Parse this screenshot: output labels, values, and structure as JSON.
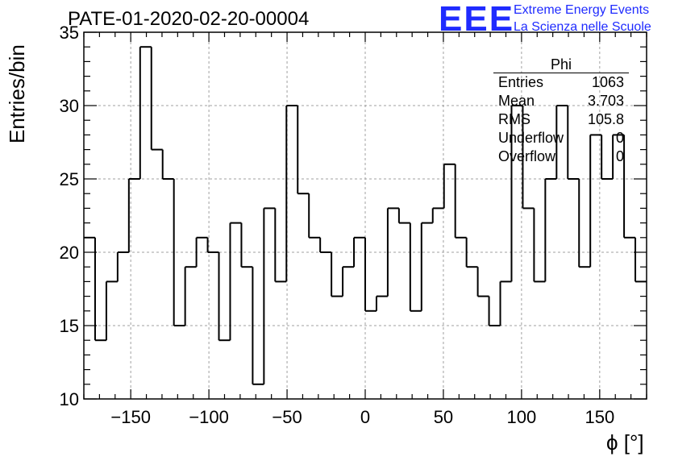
{
  "header": {
    "title": "PATE-01-2020-02-20-00004",
    "logo_text": "EEE",
    "logo_line1": "Extreme Energy Events",
    "logo_line2": "La Scienza nelle Scuole"
  },
  "stats_box": {
    "title": "Phi",
    "rows": [
      {
        "label": "Entries",
        "value": "1063"
      },
      {
        "label": "Mean",
        "value": "3.703"
      },
      {
        "label": "RMS",
        "value": "105.8"
      },
      {
        "label": "Underflow",
        "value": "0"
      },
      {
        "label": "Overflow",
        "value": "0"
      }
    ]
  },
  "chart_data": {
    "type": "bar",
    "histogram": true,
    "title": "PATE-01-2020-02-20-00004",
    "xlabel": "ϕ [°]",
    "ylabel": "Entries/bin",
    "xlim": [
      -180,
      180
    ],
    "ylim": [
      10,
      35
    ],
    "bin_width": 7.2,
    "bin_edges_start": -180,
    "x_ticks": [
      -150,
      -100,
      -50,
      0,
      50,
      100,
      150
    ],
    "x_tick_labels": [
      "−150",
      "−100",
      "−50",
      "0",
      "50",
      "100",
      "150"
    ],
    "y_ticks": [
      10,
      15,
      20,
      25,
      30,
      35
    ],
    "y_tick_labels": [
      "10",
      "15",
      "20",
      "25",
      "30",
      "35"
    ],
    "grid": true,
    "series": [
      {
        "values": [
          21,
          14,
          18,
          20,
          25,
          34,
          27,
          25,
          15,
          19,
          21,
          20,
          14,
          22,
          19,
          11,
          23,
          18,
          30,
          24,
          21,
          20,
          17,
          19,
          21,
          16,
          17,
          23,
          22,
          16,
          22,
          23,
          26,
          21,
          19,
          17,
          15,
          18,
          30,
          23,
          18,
          25,
          30,
          25,
          19,
          28,
          25,
          28,
          21,
          18
        ]
      }
    ],
    "line_color": "#000000",
    "grid_color": "#a0a0a0"
  }
}
